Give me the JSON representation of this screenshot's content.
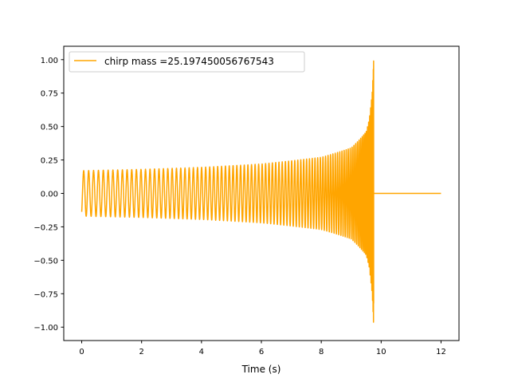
{
  "chart_data": {
    "type": "line",
    "title": "",
    "xlabel": "Time (s)",
    "ylabel": "",
    "xlim": [
      -0.6,
      12.6
    ],
    "ylim": [
      -1.1,
      1.1
    ],
    "xticks": [
      0,
      2,
      4,
      6,
      8,
      10,
      12
    ],
    "xtick_labels": [
      "0",
      "2",
      "4",
      "6",
      "8",
      "10",
      "12"
    ],
    "yticks": [
      1.0,
      0.75,
      0.5,
      0.25,
      0.0,
      -0.25,
      -0.5,
      -0.75,
      -1.0
    ],
    "ytick_labels": [
      "1.00",
      "0.75",
      "0.50",
      "0.25",
      "0.00",
      "−0.25",
      "−0.50",
      "−0.75",
      "−1.00"
    ],
    "grid": false,
    "legend_position": "top-left",
    "series": [
      {
        "name": "chirp mass =25.197450056767543",
        "color": "#ffa500",
        "envelope": {
          "t": [
            0,
            2,
            4,
            6,
            8,
            9,
            9.5,
            9.6,
            9.7,
            9.73,
            9.75
          ],
          "amplitude": [
            0.17,
            0.18,
            0.195,
            0.22,
            0.27,
            0.34,
            0.46,
            0.55,
            0.75,
            0.88,
            1.0
          ]
        },
        "merger_time": 9.75,
        "post_merger_value": 0.0,
        "end_time": 12
      }
    ]
  }
}
